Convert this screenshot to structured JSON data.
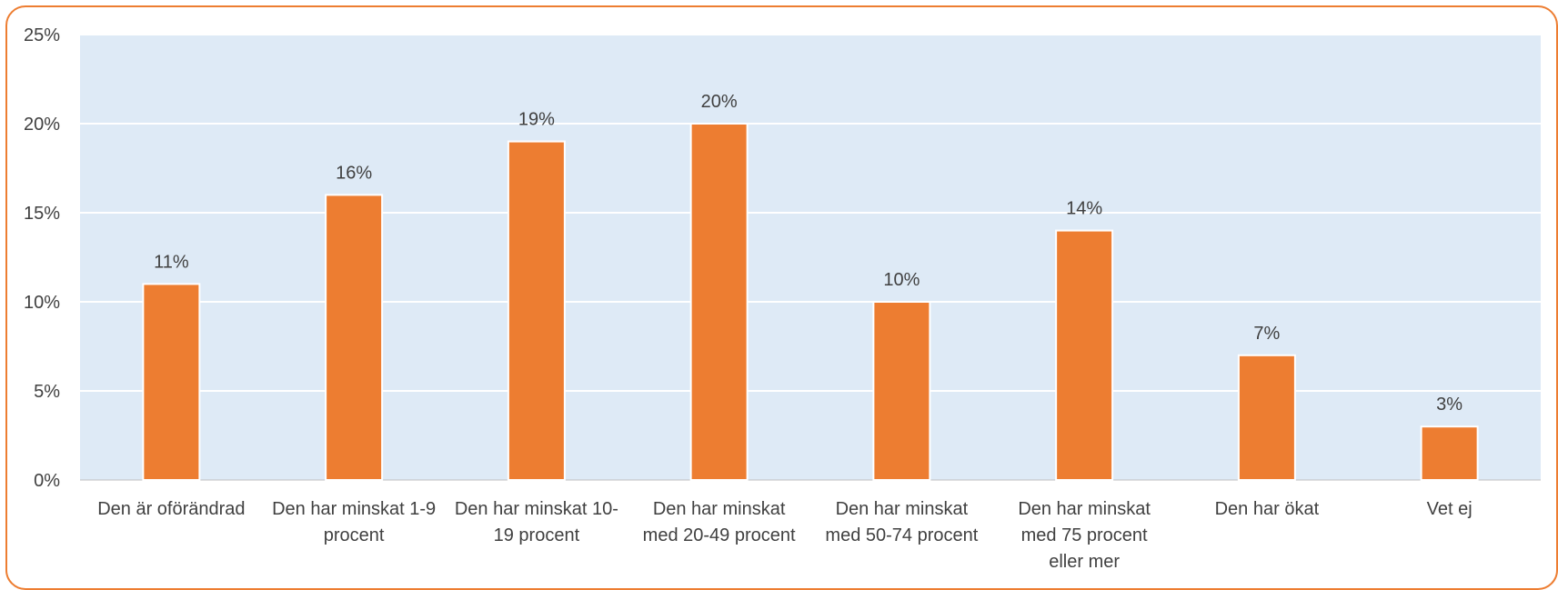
{
  "chart_data": {
    "type": "bar",
    "categories": [
      "Den är oförändrad",
      "Den har minskat 1-9 procent",
      "Den har minskat 10-19 procent",
      "Den har minskat med 20-49 procent",
      "Den har minskat med 50-74 procent",
      "Den har minskat med 75 procent eller mer",
      "Den har ökat",
      "Vet ej"
    ],
    "category_lines": [
      [
        "Den är oförändrad"
      ],
      [
        "Den har minskat 1-9",
        "procent"
      ],
      [
        "Den har minskat 10-",
        "19 procent"
      ],
      [
        "Den har minskat",
        "med 20-49 procent"
      ],
      [
        "Den har minskat",
        "med 50-74 procent"
      ],
      [
        "Den har minskat",
        "med 75 procent",
        "eller mer"
      ],
      [
        "Den har ökat"
      ],
      [
        "Vet ej"
      ]
    ],
    "values": [
      11,
      16,
      19,
      20,
      10,
      14,
      7,
      3
    ],
    "data_labels": [
      "11%",
      "16%",
      "19%",
      "20%",
      "10%",
      "14%",
      "7%",
      "3%"
    ],
    "ylim": [
      0,
      25
    ],
    "yticks": [
      0,
      5,
      10,
      15,
      20,
      25
    ],
    "ytick_labels": [
      "0%",
      "5%",
      "10%",
      "15%",
      "20%",
      "25%"
    ],
    "title": "",
    "xlabel": "",
    "ylabel": "",
    "grid": true,
    "legend": "none",
    "colors": {
      "bar": "#ED7D31",
      "plot_background": "#DEEAF6",
      "frame_border": "#ED7D31",
      "gridline": "#FFFFFF",
      "text": "#404040"
    }
  }
}
